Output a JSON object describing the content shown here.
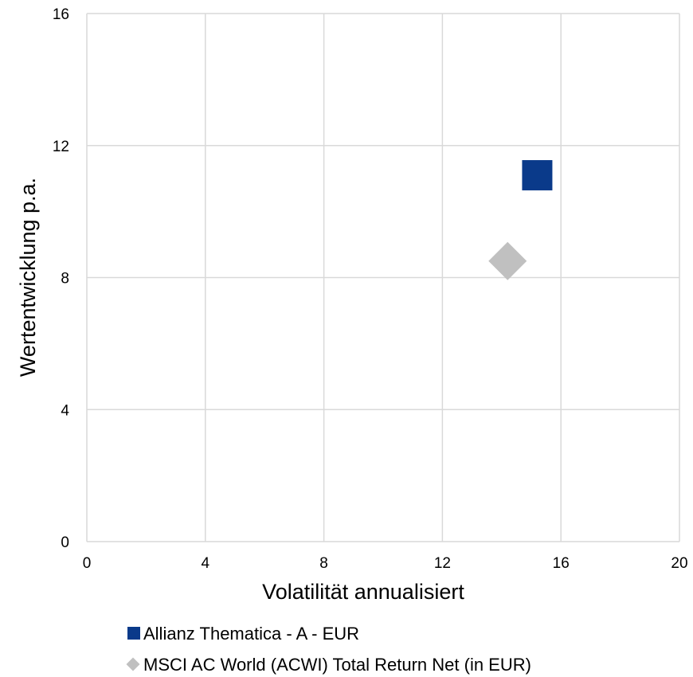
{
  "chart_data": {
    "type": "scatter",
    "title": "",
    "xlabel": "Volatilität annualisiert",
    "ylabel": "Wertentwicklung p.a.",
    "xlim": [
      0,
      20
    ],
    "ylim": [
      0,
      16
    ],
    "xticks": [
      0,
      4,
      8,
      12,
      16,
      20
    ],
    "yticks": [
      0,
      4,
      8,
      12,
      16
    ],
    "grid": true,
    "legend_position": "bottom",
    "series": [
      {
        "name": "Allianz Thematica - A - EUR",
        "marker": "square",
        "color": "#0a3a8a",
        "points": [
          {
            "x": 15.2,
            "y": 11.1
          }
        ]
      },
      {
        "name": "MSCI AC World (ACWI) Total Return Net (in EUR)",
        "marker": "diamond",
        "color": "#c0c0c0",
        "points": [
          {
            "x": 14.2,
            "y": 8.5
          }
        ]
      }
    ]
  }
}
